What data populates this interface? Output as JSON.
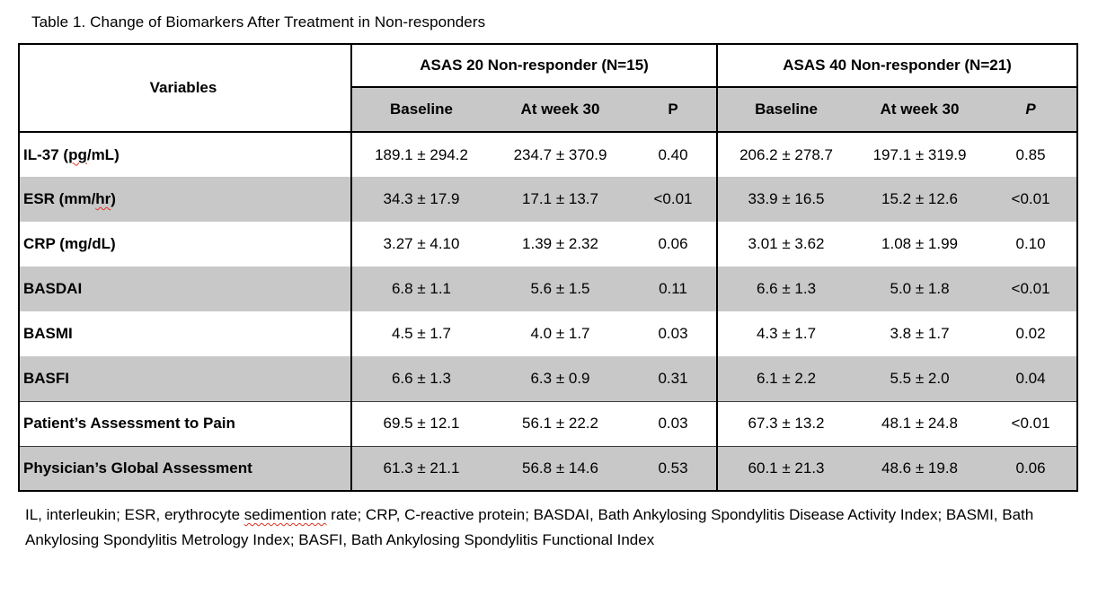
{
  "title": "Table 1. Change of Biomarkers After Treatment in Non-responders",
  "table": {
    "variables_header": "Variables",
    "groups": [
      {
        "label": "ASAS 20 Non-responder (N=15)",
        "subheaders": [
          "Baseline",
          "At week 30",
          "P"
        ]
      },
      {
        "label": "ASAS 40 Non-responder (N=21)",
        "subheaders": [
          "Baseline",
          "At week 30",
          "P"
        ]
      }
    ],
    "rows": [
      {
        "variable": "IL-37 (pg/mL)",
        "misspelled": "pg",
        "asas20": [
          "189.1 ± 294.2",
          "234.7 ± 370.9",
          "0.40"
        ],
        "asas40": [
          "206.2 ± 278.7",
          "197.1 ± 319.9",
          "0.85"
        ]
      },
      {
        "variable": "ESR (mm/hr)",
        "misspelled": "hr",
        "asas20": [
          "34.3 ± 17.9",
          "17.1 ± 13.7",
          "<0.01"
        ],
        "asas40": [
          "33.9 ± 16.5",
          "15.2 ± 12.6",
          "<0.01"
        ]
      },
      {
        "variable": "CRP (mg/dL)",
        "asas20": [
          "3.27 ± 4.10",
          "1.39 ± 2.32",
          "0.06"
        ],
        "asas40": [
          "3.01 ± 3.62",
          "1.08 ± 1.99",
          "0.10"
        ]
      },
      {
        "variable": "BASDAI",
        "asas20": [
          "6.8 ± 1.1",
          "5.6 ± 1.5",
          "0.11"
        ],
        "asas40": [
          "6.6 ± 1.3",
          "5.0 ± 1.8",
          "<0.01"
        ]
      },
      {
        "variable": "BASMI",
        "asas20": [
          "4.5 ± 1.7",
          "4.0 ± 1.7",
          "0.03"
        ],
        "asas40": [
          "4.3 ± 1.7",
          "3.8 ± 1.7",
          "0.02"
        ]
      },
      {
        "variable": "BASFI",
        "asas20": [
          "6.6 ± 1.3",
          "6.3 ± 0.9",
          "0.31"
        ],
        "asas40": [
          "6.1 ± 2.2",
          "5.5 ± 2.0",
          "0.04"
        ]
      },
      {
        "variable": "Patient’s Assessment to Pain",
        "asas20": [
          "69.5 ± 12.1",
          "56.1 ± 22.2",
          "0.03"
        ],
        "asas40": [
          "67.3 ± 13.2",
          "48.1 ± 24.8",
          "<0.01"
        ]
      },
      {
        "variable": "Physician’s Global Assessment",
        "asas20": [
          "61.3 ± 21.1",
          "56.8 ± 14.6",
          "0.53"
        ],
        "asas40": [
          "60.1 ± 21.3",
          "48.6 ± 19.8",
          "0.06"
        ]
      }
    ]
  },
  "footnote": "IL, interleukin; ESR, erythrocyte sedimention rate; CRP, C-reactive protein; BASDAI, Bath Ankylosing Spondylitis Disease Activity Index; BASMI, Bath Ankylosing Spondylitis Metrology Index; BASFI, Bath Ankylosing Spondylitis Functional Index",
  "footnote_misspelled": "sedimention",
  "colors": {
    "row_shade": "#c8c8c8",
    "border": "#000000",
    "spellcheck_underline": "#e03020"
  }
}
